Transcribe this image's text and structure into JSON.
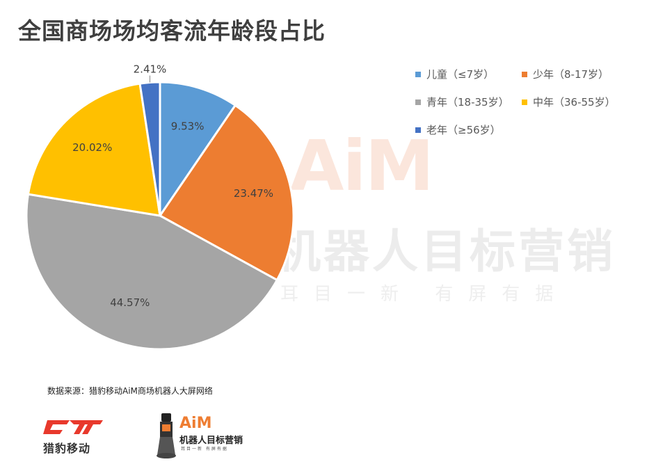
{
  "title": "全国商场场均客流年龄段占比",
  "watermark": {
    "logo": "AiM",
    "main": "机器人目标营销",
    "sub": "耳目一新 有屏有据"
  },
  "source": "数据来源：猎豹移动AiM商场机器人大屏网络",
  "logos": {
    "left_text": "猎豹移动",
    "right_logo": "AiM",
    "right_main": "机器人目标营销",
    "right_sub": "耳目一新 有屏有据"
  },
  "chart_data": {
    "type": "pie",
    "title": "全国商场场均客流年龄段占比",
    "legend_position": "top-right",
    "slices": [
      {
        "name": "儿童（≤7岁）",
        "value": 9.53,
        "label": "9.53%",
        "color": "#5b9bd5"
      },
      {
        "name": "少年（8-17岁）",
        "value": 23.47,
        "label": "23.47%",
        "color": "#ed7d31"
      },
      {
        "name": "青年（18-35岁）",
        "value": 44.57,
        "label": "44.57%",
        "color": "#a5a5a5"
      },
      {
        "name": "中年（36-55岁）",
        "value": 20.02,
        "label": "20.02%",
        "color": "#ffc000"
      },
      {
        "name": "老年（≥56岁）",
        "value": 2.41,
        "label": "2.41%",
        "color": "#4472c4"
      }
    ]
  }
}
